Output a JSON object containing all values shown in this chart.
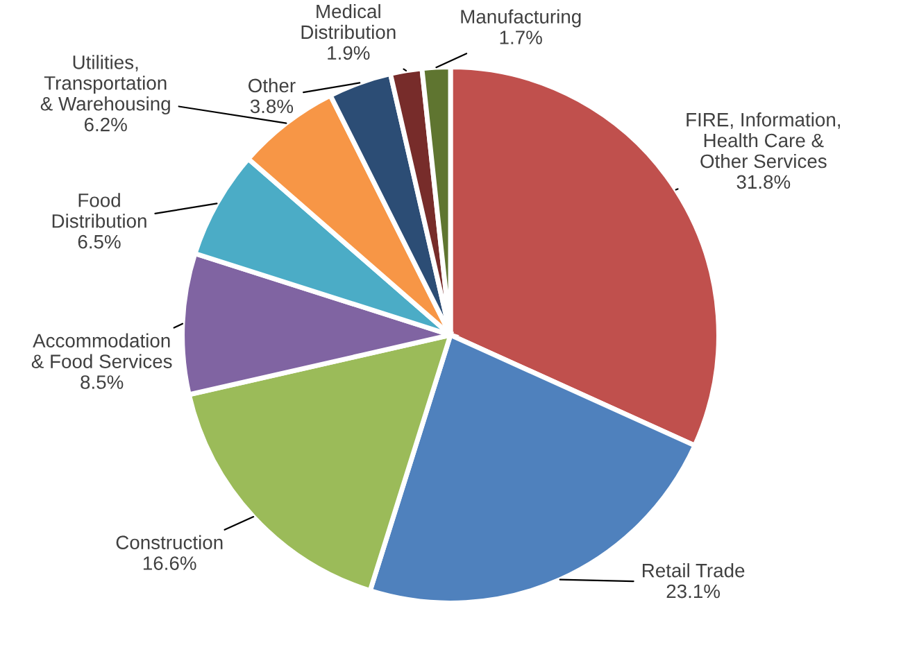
{
  "chart_data": {
    "type": "pie",
    "categories": [
      "FIRE, Information,\nHealth Care &\nOther Services",
      "Retail Trade",
      "Construction",
      "Accommodation\n& Food Services",
      "Food\nDistribution",
      "Utilities,\nTransportation\n& Warehousing",
      "Other",
      "Medical\nDistribution",
      "Manufacturing"
    ],
    "values": [
      31.8,
      23.1,
      16.6,
      8.5,
      6.5,
      6.2,
      3.8,
      1.9,
      1.7
    ],
    "value_labels": [
      "31.8%",
      "23.1%",
      "16.6%",
      "8.5%",
      "6.5%",
      "6.2%",
      "3.8%",
      "1.9%",
      "1.7%"
    ],
    "colors": [
      "#c0504d",
      "#4f81bd",
      "#9bbb59",
      "#8064a2",
      "#4bacc6",
      "#f79646",
      "#2c4d75",
      "#772c2a",
      "#5f7530"
    ],
    "legend": false
  }
}
